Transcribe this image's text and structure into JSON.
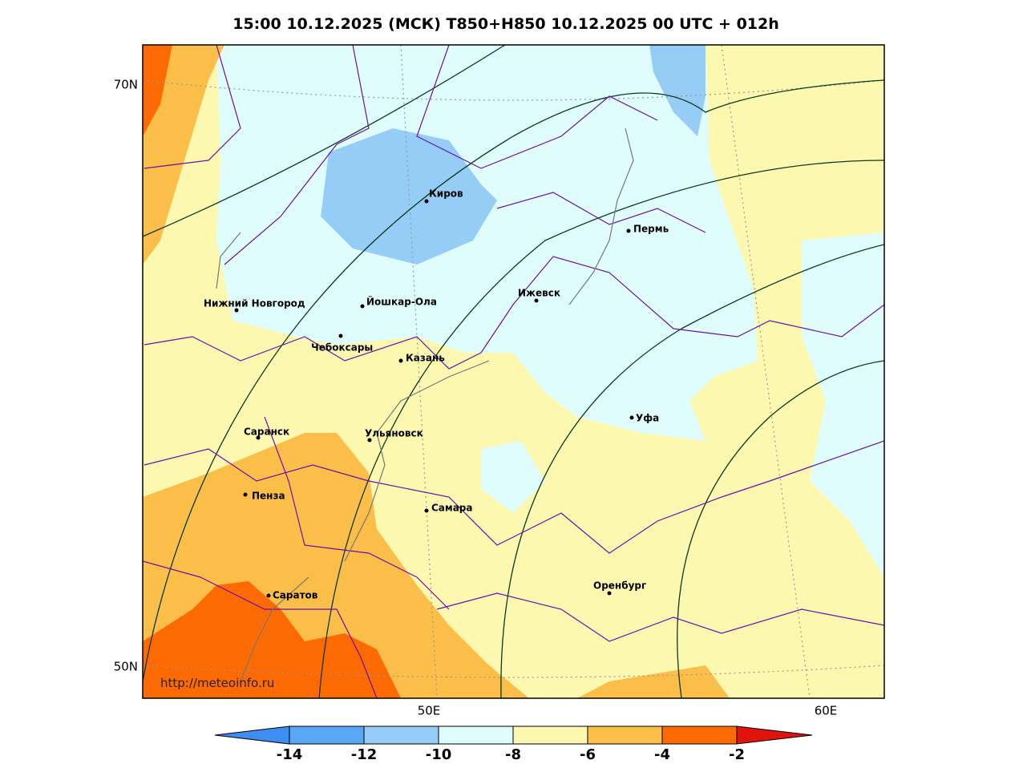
{
  "title": "15:00 10.12.2025 (МСК) T850+H850 10.12.2025 00 UTC + 012h",
  "lat_labels": [
    "70N",
    "50N"
  ],
  "lon_labels": [
    "50E",
    "60E"
  ],
  "cities": [
    "Киров",
    "Пермь",
    "Ижевск",
    "Нижний Новгород",
    "Йошкар-Ола",
    "Чебоксары",
    "Казань",
    "Саранск",
    "Ульяновск",
    "Уфа",
    "Пенза",
    "Самара",
    "Саратов",
    "Оренбург"
  ],
  "credit": "http://meteoinfo.ru",
  "colorbar": {
    "ticks": [
      -14,
      -12,
      -10,
      -8,
      -6,
      -4,
      -2
    ],
    "colors": [
      "#3d8ef0",
      "#5aa8f5",
      "#96cdf7",
      "#e0fdfd",
      "#fdf8b0",
      "#fbbe48",
      "#fe6a02",
      "#e0140c"
    ]
  }
}
